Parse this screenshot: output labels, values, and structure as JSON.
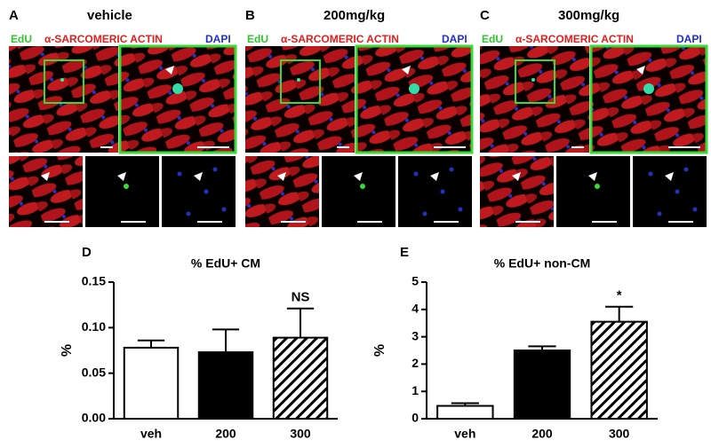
{
  "panels": [
    {
      "letter": "A",
      "title": "vehicle"
    },
    {
      "letter": "B",
      "title": "200mg/kg"
    },
    {
      "letter": "C",
      "title": "300mg/kg"
    }
  ],
  "stain_labels": [
    {
      "text": "EdU",
      "color": "#2fc52f"
    },
    {
      "text": "α-SARCOMERIC ACTIN",
      "color": "#e02020"
    },
    {
      "text": "DAPI",
      "color": "#2030d0"
    }
  ],
  "chart_data": [
    {
      "type": "bar",
      "panel_label": "D",
      "title": "% EdU+ CM",
      "y_label": "%",
      "categories": [
        "veh",
        "200",
        "300"
      ],
      "series": [
        {
          "values": [
            0.078,
            0.073,
            0.089
          ],
          "errors": [
            0.008,
            0.025,
            0.032
          ]
        }
      ],
      "colors": [
        "#ffffff",
        "#000000",
        "#ffffff"
      ],
      "hatch": [
        false,
        false,
        true
      ],
      "annotations": [
        {
          "text": "NS",
          "category": "300"
        }
      ],
      "ylim": [
        0,
        0.15
      ],
      "yticks": [
        {
          "value": 0,
          "label": "0.00"
        },
        0.05,
        {
          "value": 0.1,
          "label": "0.10"
        },
        0.15
      ]
    },
    {
      "type": "bar",
      "panel_label": "E",
      "title": "% EdU+ non-CM",
      "y_label": "%",
      "categories": [
        "veh",
        "200",
        "300"
      ],
      "series": [
        {
          "values": [
            0.47,
            2.5,
            3.55
          ],
          "errors": [
            0.1,
            0.15,
            0.55
          ]
        }
      ],
      "colors": [
        "#ffffff",
        "#000000",
        "#ffffff"
      ],
      "hatch": [
        false,
        false,
        true
      ],
      "annotations": [
        {
          "text": "*",
          "category": "300"
        }
      ],
      "ylim": [
        0,
        5
      ],
      "yticks": [
        0,
        1,
        2,
        3,
        4,
        5
      ]
    }
  ]
}
